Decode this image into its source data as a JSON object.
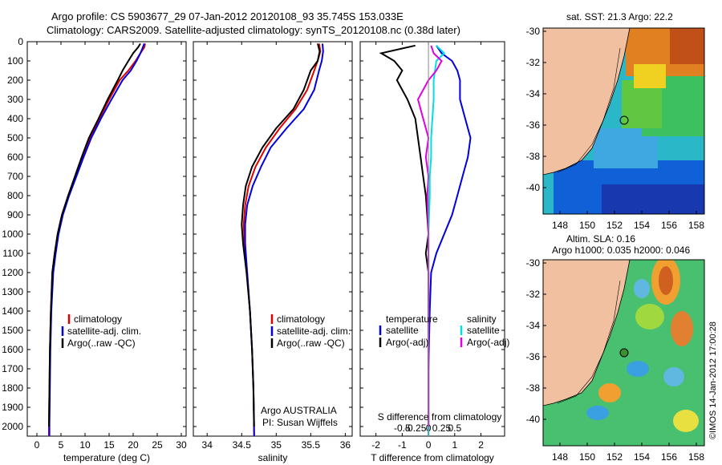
{
  "chart_data": {
    "type": "line",
    "title": "Argo profile: CS 5903677_29 07-Jan-2012 20120108_93 35.745S 153.033E",
    "subtitle": "Climatology: CARS2009. Satellite-adjusted climatology: synTS_20120108.nc (0.38d later)",
    "depth_axis": {
      "range": [
        0,
        2050
      ],
      "ticks": [
        0,
        100,
        200,
        300,
        400,
        500,
        600,
        700,
        800,
        900,
        1000,
        1100,
        1200,
        1300,
        1400,
        1500,
        1600,
        1700,
        1800,
        1900,
        2000
      ]
    },
    "panels": [
      {
        "id": "temperature",
        "xlabel": "temperature (deg C)",
        "xlim": [
          -2,
          31
        ],
        "xticks": [
          0,
          5,
          10,
          15,
          20,
          25,
          30
        ],
        "legend": [
          "climatology",
          "satellite-adj. clim.",
          "Argo(..raw -QC)"
        ],
        "series": [
          {
            "name": "climatology",
            "color": "#e00000",
            "x": [
              22.5,
              22.3,
              21.5,
              20.5,
              19.0,
              17.2,
              15.0,
              13.0,
              11.0,
              9.5,
              8.0,
              6.5,
              5.2,
              4.3,
              3.7,
              3.2,
              2.9,
              2.7,
              2.6,
              2.5,
              2.5
            ],
            "depth": [
              10,
              30,
              60,
              100,
              150,
              200,
              300,
              400,
              500,
              600,
              700,
              800,
              900,
              1000,
              1100,
              1200,
              1400,
              1600,
              1800,
              2000,
              2050
            ]
          },
          {
            "name": "satellite-adj. clim.",
            "color": "#0000e0",
            "x": [
              22.3,
              22.0,
              21.5,
              20.7,
              19.5,
              17.8,
              15.5,
              13.3,
              11.3,
              9.7,
              8.2,
              6.7,
              5.4,
              4.5,
              3.9,
              3.4,
              3.0,
              2.8,
              2.7,
              2.6,
              2.6
            ],
            "depth": [
              10,
              30,
              60,
              100,
              150,
              200,
              300,
              400,
              500,
              600,
              700,
              800,
              900,
              1000,
              1100,
              1200,
              1400,
              1600,
              1800,
              2000,
              2050
            ]
          },
          {
            "name": "Argo(..raw -QC)",
            "color": "#000000",
            "x": [
              21.5,
              21.0,
              20.0,
              19.0,
              17.8,
              16.8,
              14.7,
              12.8,
              10.8,
              9.3,
              7.9,
              6.5,
              5.2,
              4.3,
              3.7,
              3.2,
              2.9,
              2.7,
              2.6,
              2.5
            ],
            "depth": [
              10,
              30,
              60,
              100,
              150,
              200,
              300,
              400,
              500,
              600,
              700,
              800,
              900,
              1000,
              1100,
              1200,
              1400,
              1600,
              1800,
              2000
            ]
          }
        ]
      },
      {
        "id": "salinity",
        "xlabel": "salinity",
        "xlim": [
          33.8,
          36.1
        ],
        "xticks": [
          34,
          34.5,
          35,
          35.5,
          36
        ],
        "legend": [
          "climatology",
          "satellite-adj. clim.",
          "Argo(..raw -QC)"
        ],
        "series": [
          {
            "name": "climatology",
            "color": "#e00000",
            "x": [
              35.62,
              35.64,
              35.6,
              35.55,
              35.45,
              35.28,
              35.05,
              34.85,
              34.7,
              34.6,
              34.55,
              34.53,
              34.54,
              34.58,
              34.62,
              34.65,
              34.67,
              34.68
            ],
            "depth": [
              10,
              50,
              100,
              150,
              250,
              350,
              450,
              550,
              650,
              750,
              850,
              950,
              1050,
              1200,
              1400,
              1600,
              1800,
              2050
            ]
          },
          {
            "name": "satellite-adj. clim.",
            "color": "#0000e0",
            "x": [
              35.67,
              35.68,
              35.66,
              35.62,
              35.55,
              35.4,
              35.15,
              34.92,
              34.78,
              34.66,
              34.58,
              34.55,
              34.55,
              34.58,
              34.62,
              34.65,
              34.67,
              34.68
            ],
            "depth": [
              10,
              50,
              100,
              150,
              250,
              350,
              450,
              550,
              650,
              750,
              850,
              950,
              1050,
              1200,
              1400,
              1600,
              1800,
              2050
            ]
          },
          {
            "name": "Argo(..raw -QC)",
            "color": "#000000",
            "x": [
              35.6,
              35.63,
              35.6,
              35.5,
              35.4,
              35.25,
              35.0,
              34.8,
              34.65,
              34.56,
              34.52,
              34.5,
              34.52,
              34.57,
              34.62,
              34.65,
              34.67,
              34.68
            ],
            "depth": [
              10,
              50,
              100,
              150,
              250,
              350,
              450,
              550,
              650,
              750,
              850,
              950,
              1050,
              1200,
              1400,
              1600,
              1800,
              2000
            ]
          }
        ]
      },
      {
        "id": "difference",
        "xlabel": "T difference from climatology",
        "xlabel2": "S difference from climatology",
        "xlim": [
          -2.6,
          2.9
        ],
        "xticks": [
          -2,
          -1,
          0,
          1,
          2
        ],
        "s_ticks": [
          "-0.5",
          "-0.25",
          "0",
          "0.25",
          "0.5"
        ],
        "legend_temp_title": "temperature",
        "legend_sal_title": "salinity",
        "legend": [
          "satellite",
          "Argo(-adj)",
          "satellite",
          "Argo(-adj)"
        ],
        "series": [
          {
            "name": "temperature satellite",
            "color": "#0000e0",
            "x": [
              0.3,
              0.5,
              0.9,
              1.1,
              1.2,
              1.2,
              1.4,
              1.6,
              1.5,
              1.3,
              1.1,
              0.9,
              0.6,
              0.3,
              0.1,
              0.05,
              0.0,
              0.0
            ],
            "depth": [
              20,
              60,
              100,
              150,
              200,
              300,
              400,
              500,
              600,
              700,
              800,
              900,
              1000,
              1100,
              1200,
              1400,
              1700,
              2050
            ]
          },
          {
            "name": "temperature Argo(-adj)",
            "color": "#000000",
            "x": [
              -0.5,
              -1.8,
              -1.3,
              -1.0,
              -1.2,
              -0.8,
              -0.5,
              -0.4,
              -0.3,
              -0.2,
              -0.1,
              -0.05,
              0.0,
              -0.1,
              0.0,
              0.0,
              0.0,
              0.0
            ],
            "depth": [
              20,
              60,
              100,
              150,
              200,
              300,
              400,
              500,
              600,
              700,
              800,
              900,
              1000,
              1100,
              1200,
              1400,
              1700,
              2000
            ]
          },
          {
            "name": "salinity satellite",
            "color": "#00e0e0",
            "x": [
              0.3,
              0.6,
              0.3,
              0.2,
              0.2,
              0.15,
              0.1,
              0.1,
              0.05,
              0.05,
              0.0,
              0.0,
              0.0,
              0.0,
              0.0
            ],
            "depth": [
              20,
              60,
              100,
              200,
              300,
              400,
              500,
              600,
              700,
              800,
              1000,
              1200,
              1500,
              1800,
              2050
            ]
          },
          {
            "name": "salinity Argo(-adj)",
            "color": "#e000e0",
            "x": [
              0.1,
              0.2,
              0.5,
              0.3,
              0.0,
              -0.4,
              -0.2,
              0.0,
              -0.1,
              0.0,
              -0.05,
              0.0,
              0.0,
              0.0,
              0.0,
              0.0
            ],
            "depth": [
              20,
              60,
              100,
              150,
              200,
              300,
              400,
              500,
              600,
              700,
              800,
              1000,
              1200,
              1500,
              1800,
              2000
            ]
          }
        ]
      }
    ],
    "maps": [
      {
        "id": "sst-map",
        "label": "sat. SST: 21.3 Argo: 22.2",
        "lon_ticks": [
          "148",
          "150",
          "152",
          "154",
          "156",
          "158"
        ],
        "lat_ticks": [
          "-30",
          "-32",
          "-34",
          "-36",
          "-38",
          "-40"
        ]
      },
      {
        "id": "sla-map",
        "label1": "Altim. SLA: 0.16",
        "label2": "Argo h1000: 0.035 h2000: 0.046",
        "lon_ticks": [
          "148",
          "150",
          "152",
          "154",
          "156",
          "158"
        ],
        "lat_ticks": [
          "-30",
          "-32",
          "-34",
          "-36",
          "-38",
          "-40"
        ]
      }
    ],
    "annotations": {
      "argo_country": "Argo AUSTRALIA",
      "pi": "PI: Susan Wijffels",
      "credit": "©IMOS 14-Jan-2012 17:00:28"
    }
  }
}
